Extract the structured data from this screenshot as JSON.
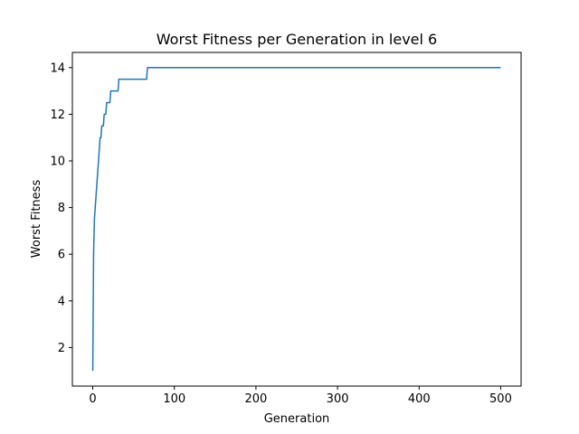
{
  "chart_data": {
    "type": "line",
    "title": "Worst Fitness per Generation in level 6",
    "xlabel": "Generation",
    "ylabel": "Worst Fitness",
    "xlim": [
      -25,
      525
    ],
    "ylim": [
      0.35,
      14.65
    ],
    "xticks": [
      0,
      100,
      200,
      300,
      400,
      500
    ],
    "yticks": [
      2,
      4,
      6,
      8,
      10,
      12,
      14
    ],
    "grid": false,
    "series": [
      {
        "color": "#1f77b4",
        "points": [
          [
            0,
            1.0
          ],
          [
            1,
            6.0
          ],
          [
            2,
            7.5
          ],
          [
            3,
            8.0
          ],
          [
            4,
            8.5
          ],
          [
            5,
            9.0
          ],
          [
            6,
            9.5
          ],
          [
            7,
            10.0
          ],
          [
            8,
            10.5
          ],
          [
            9,
            11.0
          ],
          [
            10,
            11.0
          ],
          [
            11,
            11.5
          ],
          [
            13,
            11.5
          ],
          [
            14,
            12.0
          ],
          [
            16,
            12.0
          ],
          [
            17,
            12.5
          ],
          [
            21,
            12.5
          ],
          [
            22,
            13.0
          ],
          [
            31,
            13.0
          ],
          [
            32,
            13.5
          ],
          [
            66,
            13.5
          ],
          [
            67,
            14.0
          ],
          [
            500,
            14.0
          ]
        ]
      }
    ]
  }
}
